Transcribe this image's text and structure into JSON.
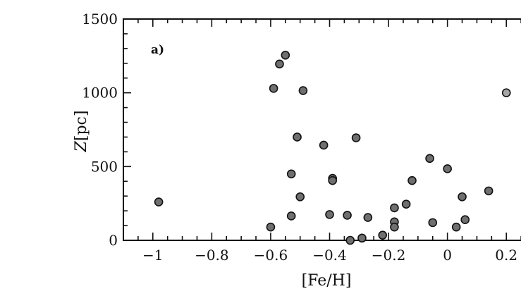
{
  "chart_data": {
    "type": "scatter",
    "panel_label": "a)",
    "xlabel": "[Fe/H]",
    "ylabel": "Z [pc]",
    "ylabel_italic": "Z",
    "ylabel_rest": "[pc]",
    "xlim": [
      -1.1,
      0.3
    ],
    "ylim": [
      0,
      1500
    ],
    "x_ticks": [
      -1,
      -0.8,
      -0.6,
      -0.4,
      -0.2,
      0,
      0.2
    ],
    "x_tick_labels": [
      "−1",
      "−0.8",
      "−0.6",
      "−0.4",
      "−0.2",
      "0",
      "0.2"
    ],
    "y_ticks": [
      0,
      500,
      1000,
      1500
    ],
    "y_tick_labels": [
      "0",
      "500",
      "1000",
      "1500"
    ],
    "grid": false,
    "points": [
      {
        "x": -0.98,
        "y": 260
      },
      {
        "x": -0.6,
        "y": 90
      },
      {
        "x": -0.59,
        "y": 1030
      },
      {
        "x": -0.57,
        "y": 1195
      },
      {
        "x": -0.55,
        "y": 1255
      },
      {
        "x": -0.53,
        "y": 450
      },
      {
        "x": -0.53,
        "y": 165
      },
      {
        "x": -0.51,
        "y": 700
      },
      {
        "x": -0.5,
        "y": 295
      },
      {
        "x": -0.49,
        "y": 1015
      },
      {
        "x": -0.42,
        "y": 645
      },
      {
        "x": -0.4,
        "y": 175
      },
      {
        "x": -0.39,
        "y": 420
      },
      {
        "x": -0.39,
        "y": 405
      },
      {
        "x": -0.34,
        "y": 170
      },
      {
        "x": -0.33,
        "y": 0
      },
      {
        "x": -0.31,
        "y": 695
      },
      {
        "x": -0.29,
        "y": 15
      },
      {
        "x": -0.27,
        "y": 155
      },
      {
        "x": -0.22,
        "y": 35
      },
      {
        "x": -0.18,
        "y": 220
      },
      {
        "x": -0.18,
        "y": 125
      },
      {
        "x": -0.18,
        "y": 90
      },
      {
        "x": -0.14,
        "y": 245
      },
      {
        "x": -0.12,
        "y": 405
      },
      {
        "x": -0.06,
        "y": 555
      },
      {
        "x": -0.05,
        "y": 120
      },
      {
        "x": 0.0,
        "y": 485
      },
      {
        "x": 0.03,
        "y": 90
      },
      {
        "x": 0.05,
        "y": 295
      },
      {
        "x": 0.06,
        "y": 140
      },
      {
        "x": 0.14,
        "y": 335
      },
      {
        "x": 0.2,
        "y": 1000,
        "shade": "light"
      }
    ]
  }
}
